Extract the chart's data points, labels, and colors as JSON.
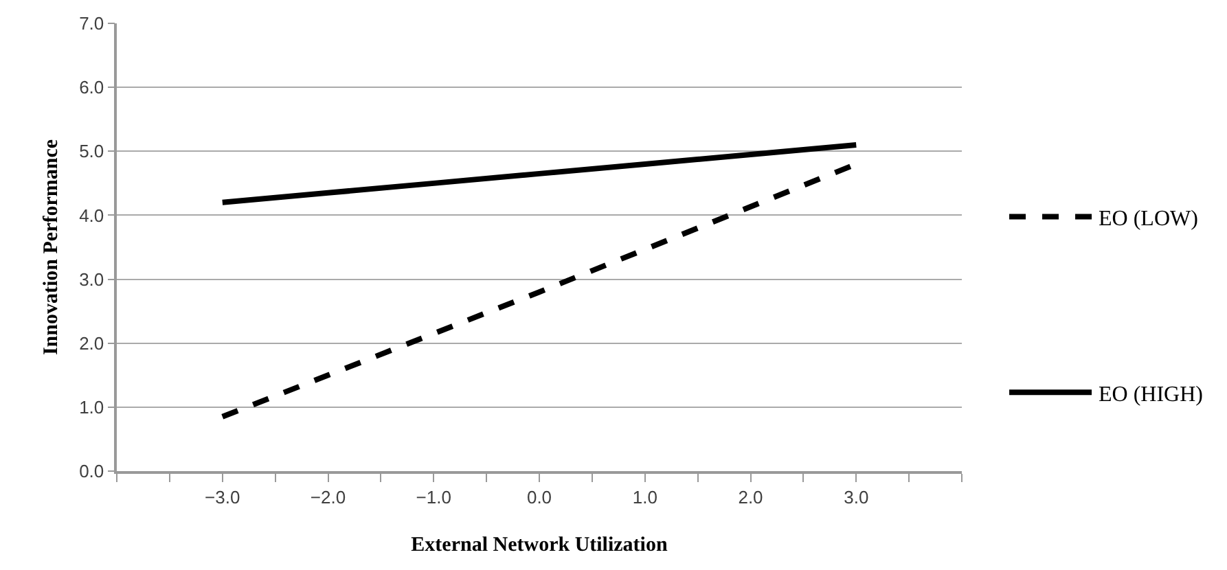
{
  "chart_data": {
    "type": "line",
    "xlabel": "External Network Utilization",
    "ylabel": "Innovation Performance",
    "xlim": [
      -4,
      4
    ],
    "xticks": [
      {
        "value": -4,
        "label": null
      },
      {
        "value": -3.5,
        "label": null
      },
      {
        "value": -3,
        "label": "−3.0"
      },
      {
        "value": -2.5,
        "label": null
      },
      {
        "value": -2,
        "label": "−2.0"
      },
      {
        "value": -1.5,
        "label": null
      },
      {
        "value": -1,
        "label": "−1.0"
      },
      {
        "value": -0.5,
        "label": null
      },
      {
        "value": 0,
        "label": "0.0"
      },
      {
        "value": 0.5,
        "label": null
      },
      {
        "value": 1,
        "label": "1.0"
      },
      {
        "value": 1.5,
        "label": null
      },
      {
        "value": 2,
        "label": "2.0"
      },
      {
        "value": 2.5,
        "label": null
      },
      {
        "value": 3,
        "label": "3.0"
      },
      {
        "value": 3.5,
        "label": null
      },
      {
        "value": 4,
        "label": null
      }
    ],
    "ylim": [
      0,
      7
    ],
    "yticks": [
      {
        "value": 0,
        "label": "0.0"
      },
      {
        "value": 1,
        "label": "1.0"
      },
      {
        "value": 2,
        "label": "2.0"
      },
      {
        "value": 3,
        "label": "3.0"
      },
      {
        "value": 4,
        "label": "4.0"
      },
      {
        "value": 5,
        "label": "5.0"
      },
      {
        "value": 6,
        "label": "6.0"
      },
      {
        "value": 7,
        "label": "7.0"
      }
    ],
    "grid": "y",
    "legend": "right",
    "marker": "none",
    "series": [
      {
        "name": "EO (LOW)",
        "color": "#000000",
        "line_style": "dashed",
        "x": [
          -3,
          0,
          3
        ],
        "values": [
          0.85,
          2.8,
          4.8
        ]
      },
      {
        "name": "EO (HIGH)",
        "color": "#000000",
        "line_style": "solid",
        "x": [
          -3,
          -2,
          -1,
          0,
          1,
          2,
          3
        ],
        "values": [
          4.2,
          4.35,
          4.5,
          4.65,
          4.8,
          4.95,
          5.1
        ]
      }
    ]
  }
}
